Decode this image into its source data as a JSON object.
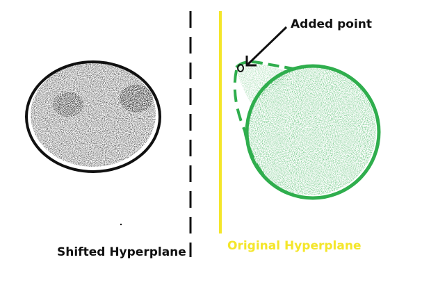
{
  "labels": {
    "added_point": "Added point",
    "shifted_hyperplane": "Shifted Hyperplane",
    "original_hyperplane": "Original Hyperplane"
  },
  "colors": {
    "background": "#ffffff",
    "shifted_cluster_outline": "#111111",
    "shifted_cluster_fill": "#111111",
    "original_cluster_outline": "#2fae4d",
    "original_cluster_fill": "#2fae4d",
    "original_hyperplane_line": "#f4e62a",
    "shifted_hyperplane_line": "#111111",
    "arrow": "#111111",
    "added_point_marker": "#111111"
  },
  "icons": {
    "arrow": "arrow-pointing-down-left"
  }
}
